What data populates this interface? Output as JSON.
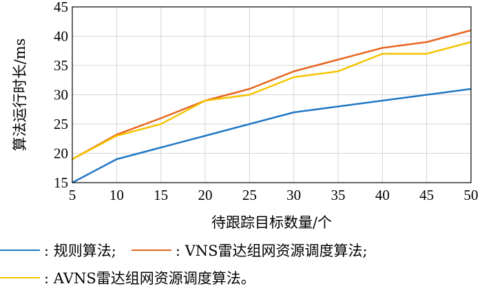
{
  "chart_data": {
    "type": "line",
    "xlabel": "待跟踪目标数量/个",
    "ylabel": "算法运行时长/ms",
    "x": [
      5,
      10,
      15,
      20,
      25,
      30,
      35,
      40,
      45,
      50
    ],
    "xlim": [
      5,
      50
    ],
    "ylim": [
      15,
      45
    ],
    "xticks": [
      "5",
      "10",
      "15",
      "20",
      "25",
      "30",
      "35",
      "40",
      "45",
      "50"
    ],
    "yticks": [
      "15",
      "20",
      "25",
      "30",
      "35",
      "40",
      "45"
    ],
    "grid": true,
    "series": [
      {
        "name": "规则算法",
        "legend_text": ": 规则算法;",
        "color": "#1f77c4",
        "values": [
          15,
          19,
          21,
          23,
          25,
          27,
          28,
          29,
          30,
          31
        ]
      },
      {
        "name": "VNS雷达组网资源调度算法",
        "legend_text": ": VNS雷达组网资源调度算法;",
        "color": "#e8641e",
        "values": [
          19,
          23.2,
          26,
          29,
          31,
          34,
          36,
          38,
          39,
          41
        ]
      },
      {
        "name": "AVNS雷达组网资源调度算法",
        "legend_text": ": AVNS雷达组网资源调度算法。",
        "color": "#f5c400",
        "values": [
          19,
          23,
          25,
          29,
          30,
          33,
          34,
          37,
          37,
          39
        ]
      }
    ]
  }
}
